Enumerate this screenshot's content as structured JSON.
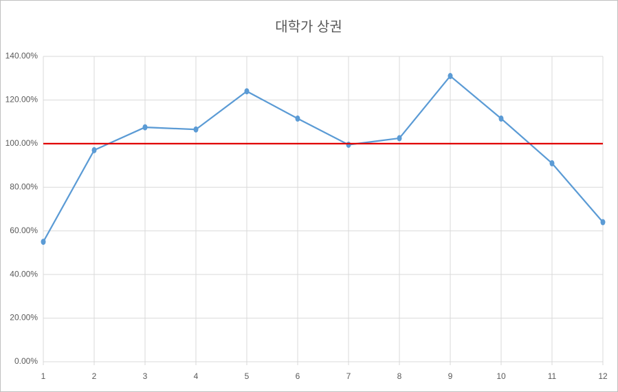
{
  "chart_data": {
    "type": "line",
    "title": "대학가 상권",
    "x": [
      1,
      2,
      3,
      4,
      5,
      6,
      7,
      8,
      9,
      10,
      11,
      12
    ],
    "series": [
      {
        "color": "#5b9bd5",
        "markers": true,
        "values": [
          55,
          97,
          107.5,
          106.5,
          124,
          111.5,
          99.5,
          102.5,
          131,
          111.5,
          91,
          64
        ]
      },
      {
        "color": "#e00000",
        "markers": false,
        "values": [
          100,
          100,
          100,
          100,
          100,
          100,
          100,
          100,
          100,
          100,
          100,
          100
        ]
      }
    ],
    "xlim": [
      1,
      12
    ],
    "xticks": [
      1,
      2,
      3,
      4,
      5,
      6,
      7,
      8,
      9,
      10,
      11,
      12
    ],
    "ylim": [
      0,
      140
    ],
    "yticks": [
      {
        "value": 0,
        "label": "0.00%"
      },
      {
        "value": 20,
        "label": "20.00%"
      },
      {
        "value": 40,
        "label": "40.00%"
      },
      {
        "value": 60,
        "label": "60.00%"
      },
      {
        "value": 80,
        "label": "80.00%"
      },
      {
        "value": 100,
        "label": "100.00%"
      },
      {
        "value": 120,
        "label": "120.00%"
      },
      {
        "value": 140,
        "label": "140.00%"
      }
    ],
    "grid": true
  }
}
